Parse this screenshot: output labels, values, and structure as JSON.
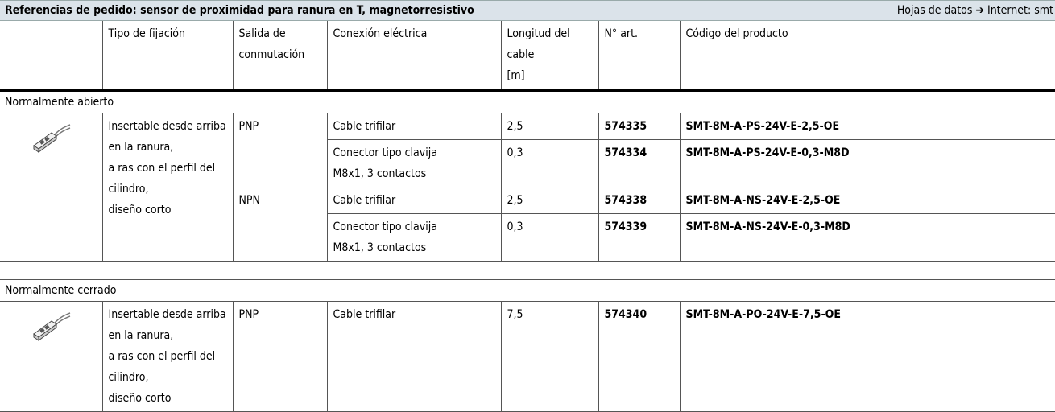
{
  "header": {
    "title": "Referencias de pedido: sensor de proximidad para ranura en T, magnetorresistivo",
    "right_text": "Hojas de datos ➔ Internet: smt"
  },
  "table": {
    "columns": [
      [
        "Tipo de fijación"
      ],
      [
        "Salida de",
        "conmutación"
      ],
      [
        "Conexión eléctrica"
      ],
      [
        "Longitud del",
        "cable",
        "[m]"
      ],
      [
        "N° art."
      ],
      [
        "Código del producto"
      ]
    ],
    "groups": [
      {
        "label": "Normalmente abierto",
        "fixation": [
          "Insertable desde arriba en la ranura,",
          "a ras con el perfil del cilindro,",
          "diseño corto"
        ],
        "outputs": [
          {
            "output": "PNP",
            "rows": [
              {
                "connection": [
                  "Cable trifilar"
                ],
                "length": "2,5",
                "article": "574335",
                "code": "SMT-8M-A-PS-24V-E-2,5-OE"
              },
              {
                "connection": [
                  "Conector tipo clavija",
                  "M8x1, 3 contactos"
                ],
                "length": "0,3",
                "article": "574334",
                "code": "SMT-8M-A-PS-24V-E-0,3-M8D"
              }
            ]
          },
          {
            "output": "NPN",
            "rows": [
              {
                "connection": [
                  "Cable trifilar"
                ],
                "length": "2,5",
                "article": "574338",
                "code": "SMT-8M-A-NS-24V-E-2,5-OE"
              },
              {
                "connection": [
                  "Conector tipo clavija",
                  "M8x1, 3 contactos"
                ],
                "length": "0,3",
                "article": "574339",
                "code": "SMT-8M-A-NS-24V-E-0,3-M8D"
              }
            ]
          }
        ]
      },
      {
        "label": "Normalmente cerrado",
        "fixation": [
          "Insertable desde arriba en la ranura,",
          "a ras con el perfil del cilindro,",
          "diseño corto"
        ],
        "outputs": [
          {
            "output": "PNP",
            "rows": [
              {
                "connection": [
                  "Cable trifilar"
                ],
                "length": "7,5",
                "article": "574340",
                "code": "SMT-8M-A-PO-24V-E-7,5-OE"
              }
            ]
          }
        ]
      }
    ]
  }
}
